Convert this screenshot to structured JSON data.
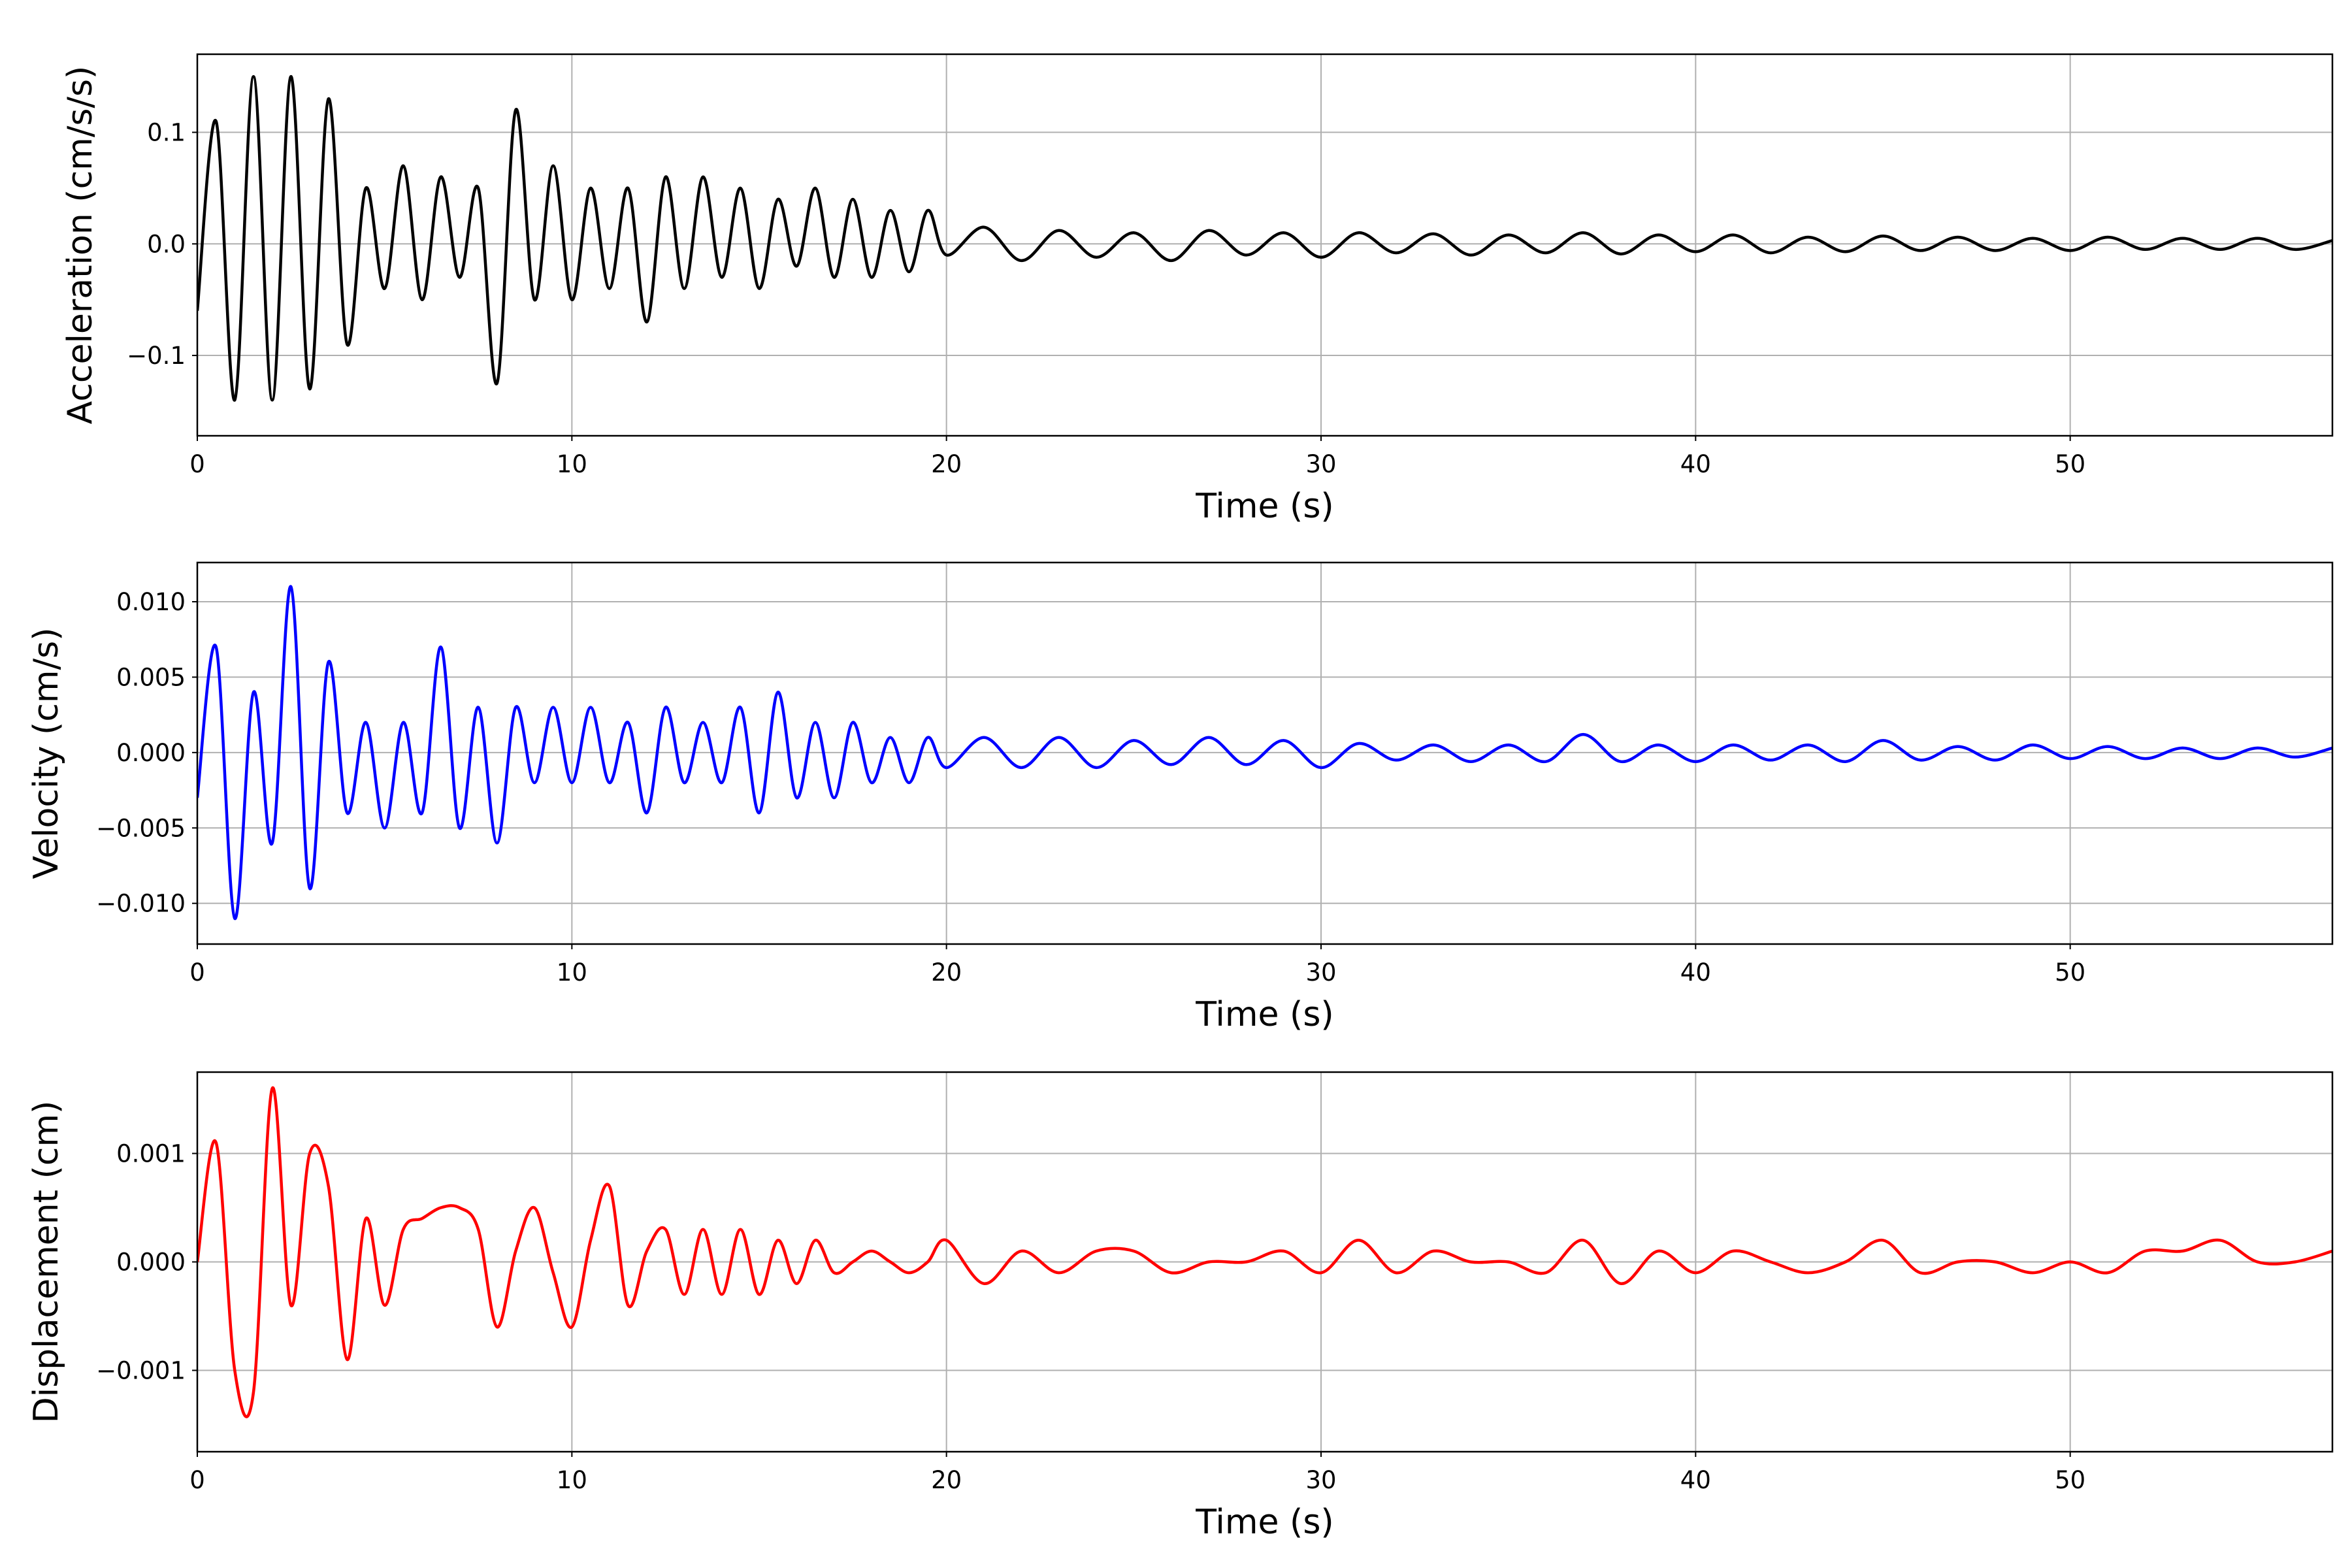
{
  "chart_data": [
    {
      "type": "line",
      "title": "",
      "xlabel": "Time (s)",
      "ylabel": "Acceleration (cm/s/s)",
      "color": "#000000",
      "xlim": [
        0,
        57
      ],
      "ylim": [
        -0.172,
        0.17
      ],
      "xticks": [
        0,
        10,
        20,
        30,
        40,
        50
      ],
      "xtick_labels": [
        "0",
        "10",
        "20",
        "30",
        "40",
        "50"
      ],
      "yticks": [
        0.1,
        0.0,
        -0.1
      ],
      "ytick_labels": [
        "0.1",
        "0.0",
        "−0.1"
      ],
      "grid": true,
      "t": [
        0,
        0.5,
        1,
        1.5,
        2,
        2.5,
        3,
        3.5,
        4,
        4.5,
        5,
        5.5,
        6,
        6.5,
        7,
        7.5,
        8,
        8.5,
        9,
        9.5,
        10,
        10.5,
        11,
        11.5,
        12,
        12.5,
        13,
        13.5,
        14,
        14.5,
        15,
        15.5,
        16,
        16.5,
        17,
        17.5,
        18,
        18.5,
        19,
        19.5,
        20,
        21,
        22,
        23,
        24,
        25,
        26,
        27,
        28,
        29,
        30,
        31,
        32,
        33,
        34,
        35,
        36,
        37,
        38,
        39,
        40,
        41,
        42,
        43,
        44,
        45,
        46,
        47,
        48,
        49,
        50,
        51,
        52,
        53,
        54,
        55,
        56,
        57
      ],
      "values": [
        -0.06,
        0.11,
        -0.14,
        0.15,
        -0.14,
        0.15,
        -0.13,
        0.13,
        -0.09,
        0.05,
        -0.04,
        0.07,
        -0.05,
        0.06,
        -0.03,
        0.05,
        -0.125,
        0.12,
        -0.05,
        0.07,
        -0.05,
        0.05,
        -0.04,
        0.05,
        -0.07,
        0.06,
        -0.04,
        0.06,
        -0.03,
        0.05,
        -0.04,
        0.04,
        -0.02,
        0.05,
        -0.03,
        0.04,
        -0.03,
        0.03,
        -0.025,
        0.03,
        -0.01,
        0.015,
        -0.015,
        0.012,
        -0.012,
        0.01,
        -0.015,
        0.012,
        -0.01,
        0.01,
        -0.012,
        0.01,
        -0.008,
        0.009,
        -0.01,
        0.008,
        -0.008,
        0.01,
        -0.009,
        0.008,
        -0.007,
        0.008,
        -0.008,
        0.006,
        -0.007,
        0.007,
        -0.006,
        0.006,
        -0.006,
        0.005,
        -0.006,
        0.006,
        -0.005,
        0.005,
        -0.005,
        0.005,
        -0.005,
        0.003
      ]
    },
    {
      "type": "line",
      "title": "",
      "xlabel": "Time (s)",
      "ylabel": "Velocity (cm/s)",
      "color": "#0000ff",
      "xlim": [
        0,
        57
      ],
      "ylim": [
        -0.0127,
        0.0126
      ],
      "xticks": [
        0,
        10,
        20,
        30,
        40,
        50
      ],
      "xtick_labels": [
        "0",
        "10",
        "20",
        "30",
        "40",
        "50"
      ],
      "yticks": [
        0.01,
        0.005,
        0.0,
        -0.005,
        -0.01
      ],
      "ytick_labels": [
        "0.010",
        "0.005",
        "0.000",
        "−0.005",
        "−0.010"
      ],
      "grid": true,
      "t": [
        0,
        0.5,
        1,
        1.5,
        2,
        2.5,
        3,
        3.5,
        4,
        4.5,
        5,
        5.5,
        6,
        6.5,
        7,
        7.5,
        8,
        8.5,
        9,
        9.5,
        10,
        10.5,
        11,
        11.5,
        12,
        12.5,
        13,
        13.5,
        14,
        14.5,
        15,
        15.5,
        16,
        16.5,
        17,
        17.5,
        18,
        18.5,
        19,
        19.5,
        20,
        21,
        22,
        23,
        24,
        25,
        26,
        27,
        28,
        29,
        30,
        31,
        32,
        33,
        34,
        35,
        36,
        37,
        38,
        39,
        40,
        41,
        42,
        43,
        44,
        45,
        46,
        47,
        48,
        49,
        50,
        51,
        52,
        53,
        54,
        55,
        56,
        57
      ],
      "values": [
        -0.003,
        0.007,
        -0.011,
        0.004,
        -0.006,
        0.011,
        -0.009,
        0.006,
        -0.004,
        0.002,
        -0.005,
        0.002,
        -0.004,
        0.007,
        -0.005,
        0.003,
        -0.006,
        0.003,
        -0.002,
        0.003,
        -0.002,
        0.003,
        -0.002,
        0.002,
        -0.004,
        0.003,
        -0.002,
        0.002,
        -0.002,
        0.003,
        -0.004,
        0.004,
        -0.003,
        0.002,
        -0.003,
        0.002,
        -0.002,
        0.001,
        -0.002,
        0.001,
        -0.001,
        0.001,
        -0.001,
        0.001,
        -0.001,
        0.0008,
        -0.0008,
        0.001,
        -0.0008,
        0.0008,
        -0.001,
        0.0006,
        -0.0005,
        0.0005,
        -0.0006,
        0.0005,
        -0.0006,
        0.0012,
        -0.0006,
        0.0005,
        -0.0006,
        0.0005,
        -0.0005,
        0.0005,
        -0.0006,
        0.0008,
        -0.0005,
        0.0004,
        -0.0005,
        0.0005,
        -0.0004,
        0.0004,
        -0.0004,
        0.0003,
        -0.0004,
        0.0003,
        -0.0003,
        0.0003
      ]
    },
    {
      "type": "line",
      "title": "",
      "xlabel": "Time (s)",
      "ylabel": "Displacement (cm)",
      "color": "#ff0000",
      "xlim": [
        0,
        57
      ],
      "ylim": [
        -0.00175,
        0.00175
      ],
      "xticks": [
        0,
        10,
        20,
        30,
        40,
        50
      ],
      "xtick_labels": [
        "0",
        "10",
        "20",
        "30",
        "40",
        "50"
      ],
      "yticks": [
        0.001,
        0.0,
        -0.001
      ],
      "ytick_labels": [
        "0.001",
        "0.000",
        "−0.001"
      ],
      "grid": true,
      "t": [
        0,
        0.5,
        1,
        1.5,
        2,
        2.5,
        3,
        3.5,
        4,
        4.5,
        5,
        5.5,
        6,
        6.5,
        7,
        7.5,
        8,
        8.5,
        9,
        9.5,
        10,
        10.5,
        11,
        11.5,
        12,
        12.5,
        13,
        13.5,
        14,
        14.5,
        15,
        15.5,
        16,
        16.5,
        17,
        17.5,
        18,
        18.5,
        19,
        19.5,
        20,
        21,
        22,
        23,
        24,
        25,
        26,
        27,
        28,
        29,
        30,
        31,
        32,
        33,
        34,
        35,
        36,
        37,
        38,
        39,
        40,
        41,
        42,
        43,
        44,
        45,
        46,
        47,
        48,
        49,
        50,
        51,
        52,
        53,
        54,
        55,
        56,
        57
      ],
      "values": [
        0,
        0.0011,
        -0.001,
        -0.0012,
        0.0016,
        -0.0004,
        0.001,
        0.0007,
        -0.0009,
        0.0004,
        -0.0004,
        0.0003,
        0.0004,
        0.0005,
        0.0005,
        0.0003,
        -0.0006,
        0.0001,
        0.0005,
        -0.0001,
        -0.0006,
        0.0002,
        0.0007,
        -0.0004,
        0.0001,
        0.0003,
        -0.0003,
        0.0003,
        -0.0003,
        0.0003,
        -0.0003,
        0.0002,
        -0.0002,
        0.0002,
        -0.0001,
        0,
        0.0001,
        0,
        -0.0001,
        0,
        0.0002,
        -0.0002,
        0.0001,
        -0.0001,
        0.0001,
        0.0001,
        -0.0001,
        0,
        0,
        0.0001,
        -0.0001,
        0.0002,
        -0.0001,
        0.0001,
        0,
        0,
        -0.0001,
        0.0002,
        -0.0002,
        0.0001,
        -0.0001,
        0.0001,
        0,
        -0.0001,
        0,
        0.0002,
        -0.0001,
        0,
        0,
        -0.0001,
        0,
        -0.0001,
        0.0001,
        0.0001,
        0.0002,
        0,
        0,
        0.0001
      ]
    }
  ]
}
